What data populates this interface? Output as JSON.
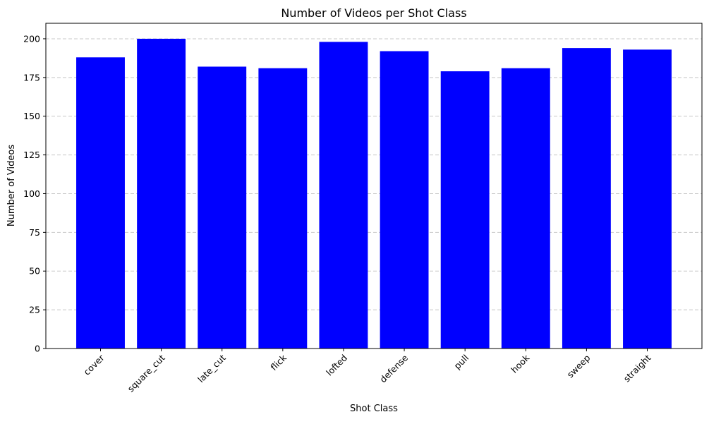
{
  "chart_data": {
    "type": "bar",
    "title": "Number of Videos per Shot Class",
    "xlabel": "Shot Class",
    "ylabel": "Number of Videos",
    "categories": [
      "cover",
      "square_cut",
      "late_cut",
      "flick",
      "lofted",
      "defense",
      "pull",
      "hook",
      "sweep",
      "straight"
    ],
    "values": [
      188,
      200,
      182,
      181,
      198,
      192,
      179,
      181,
      194,
      193
    ],
    "ylim": [
      0,
      210
    ],
    "yticks": [
      0,
      25,
      50,
      75,
      100,
      125,
      150,
      175,
      200
    ],
    "grid": "y-dashed",
    "bar_color": "#0000ff",
    "legend": "none"
  }
}
